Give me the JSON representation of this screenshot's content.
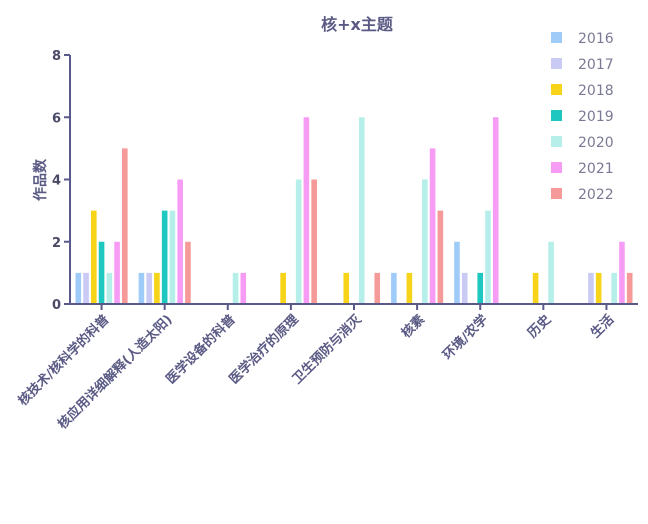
{
  "chart_data": {
    "type": "bar",
    "title": "核+x主题",
    "xlabel": "",
    "ylabel": "作品数",
    "ylim": [
      0,
      8
    ],
    "yticks": [
      0,
      2,
      4,
      6,
      8
    ],
    "grid": false,
    "legend_position": "top-right",
    "categories": [
      "核技术/核科学的科普",
      "核应用详细解释(人造太阳)",
      "医学设备的科普",
      "医学治疗的原理",
      "卫生预防与消灭",
      "核素",
      "环境/农学",
      "历史",
      "生活"
    ],
    "series": [
      {
        "name": "2016",
        "color": "#9ecbf7",
        "values": [
          1,
          1,
          0,
          0,
          0,
          1,
          2,
          0,
          0
        ]
      },
      {
        "name": "2017",
        "color": "#c9cbf5",
        "values": [
          1,
          1,
          0,
          0,
          0,
          0,
          1,
          0,
          1
        ]
      },
      {
        "name": "2018",
        "color": "#f7d419",
        "values": [
          3,
          1,
          0,
          1,
          1,
          1,
          0,
          1,
          1
        ]
      },
      {
        "name": "2019",
        "color": "#1ec8c0",
        "values": [
          2,
          3,
          0,
          0,
          0,
          0,
          1,
          0,
          0
        ]
      },
      {
        "name": "2020",
        "color": "#b6eeea",
        "values": [
          1,
          3,
          1,
          4,
          6,
          4,
          3,
          2,
          1
        ]
      },
      {
        "name": "2021",
        "color": "#f79cf5",
        "values": [
          2,
          4,
          1,
          6,
          0,
          5,
          6,
          0,
          2
        ]
      },
      {
        "name": "2022",
        "color": "#f59a98",
        "values": [
          5,
          2,
          0,
          4,
          1,
          3,
          0,
          0,
          1
        ]
      }
    ]
  }
}
